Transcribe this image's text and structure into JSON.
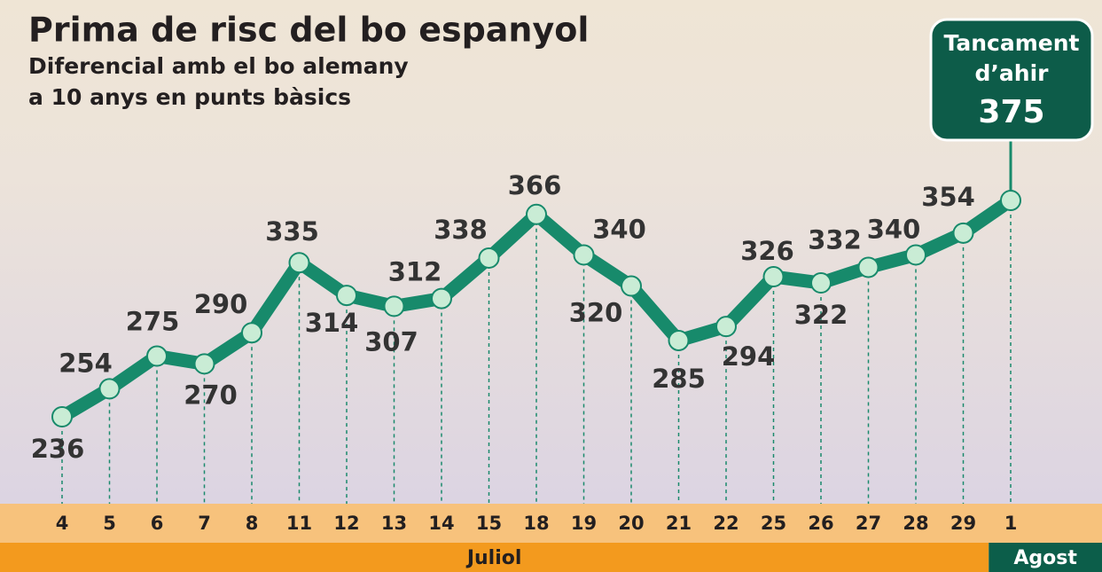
{
  "chart_data": {
    "type": "line",
    "title": "Prima de risc del bo espanyol",
    "subtitle": [
      "Diferencial amb el bo alemany",
      "a 10 anys en punts bàsics"
    ],
    "annotation": [
      "Tancament",
      "d’ahir"
    ],
    "categories": [
      "4",
      "5",
      "6",
      "7",
      "8",
      "11",
      "12",
      "13",
      "14",
      "15",
      "18",
      "19",
      "20",
      "21",
      "22",
      "25",
      "26",
      "27",
      "28",
      "29",
      "1"
    ],
    "months": [
      "Juliol",
      "Agost"
    ],
    "series": [
      {
        "color": "#178a6b",
        "values": [
          236,
          254,
          275,
          270,
          290,
          335,
          314,
          307,
          312,
          338,
          366,
          340,
          320,
          285,
          294,
          326,
          322,
          332,
          340,
          354,
          375
        ]
      }
    ]
  }
}
